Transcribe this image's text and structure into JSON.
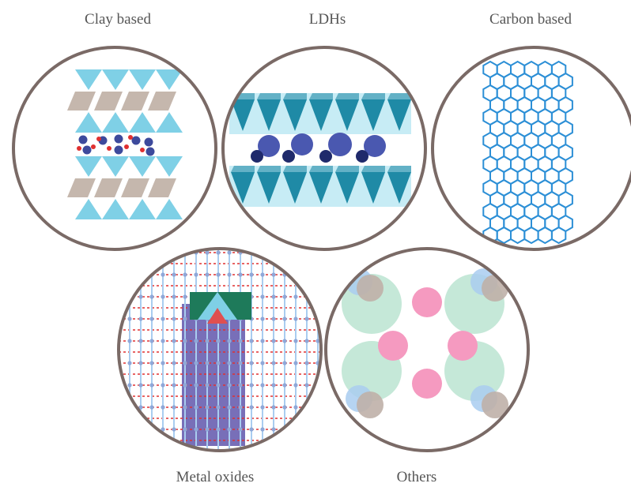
{
  "labels": {
    "clay": "Clay based",
    "ldh": "LDHs",
    "carbon": "Carbon based",
    "metal": "Metal oxides",
    "others": "Others"
  },
  "colors": {
    "ring": "#7a6a66",
    "tetra": "#7fd0e6",
    "octa": "#c5b7ad",
    "ldh_dark": "#1f8aa6",
    "ldh_light": "#c7ecf5",
    "hex": "#2c8fd6",
    "blue_atom": "#3d4a9c",
    "red_atom": "#e03030",
    "pink": "#f59ac0",
    "mint": "#bfe6d4",
    "taupe": "#bfb0a8",
    "lightblue": "#a9cdf0"
  }
}
